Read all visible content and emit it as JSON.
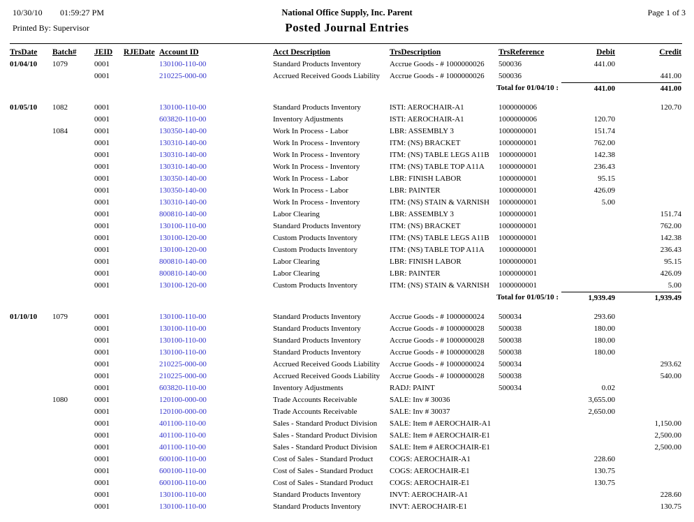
{
  "report": {
    "print_date": "10/30/10",
    "print_time": "01:59:27 PM",
    "printed_by": "Printed By: Supervisor",
    "company": "National Office Supply, Inc. Parent",
    "title": "Posted Journal Entries",
    "page_label": "Page 1 of  3"
  },
  "colors": {
    "account_link_blue": "#3333CC",
    "text": "#000000",
    "background": "#FFFFFF"
  },
  "table": {
    "columns": [
      "TrsDate",
      "Batch#",
      "JEID",
      "RJEDate",
      "Account ID",
      "Acct Description",
      "TrsDescription",
      "TrsReference",
      "Debit",
      "Credit"
    ],
    "rows": [
      {
        "type": "entry",
        "cells": [
          "01/04/10",
          "1079",
          "0001",
          "",
          "130100-110-00",
          "Standard Products Inventory",
          "Accrue Goods - # 1000000026",
          "500036",
          "441.00",
          ""
        ]
      },
      {
        "type": "entry",
        "cells": [
          "",
          "",
          "0001",
          "",
          "210225-000-00",
          "Accrued Received Goods Liability",
          "Accrue Goods - # 1000000026",
          "500036",
          "",
          "441.00"
        ]
      },
      {
        "type": "total",
        "label": "Total for 01/04/10 :",
        "debit": "441.00",
        "credit": "441.00"
      },
      {
        "type": "spacer"
      },
      {
        "type": "entry",
        "cells": [
          "01/05/10",
          "1082",
          "0001",
          "",
          "130100-110-00",
          "Standard Products Inventory",
          "ISTI: AEROCHAIR-A1",
          "1000000006",
          "",
          "120.70"
        ]
      },
      {
        "type": "entry",
        "cells": [
          "",
          "",
          "0001",
          "",
          "603820-110-00",
          "Inventory Adjustments",
          "ISTI: AEROCHAIR-A1",
          "1000000006",
          "120.70",
          ""
        ]
      },
      {
        "type": "entry",
        "cells": [
          "",
          "1084",
          "0001",
          "",
          "130350-140-00",
          "Work In Process - Labor",
          "LBR: ASSEMBLY 3",
          "1000000001",
          "151.74",
          ""
        ]
      },
      {
        "type": "entry",
        "cells": [
          "",
          "",
          "0001",
          "",
          "130310-140-00",
          "Work In Process - Inventory",
          "ITM: (NS) BRACKET",
          "1000000001",
          "762.00",
          ""
        ]
      },
      {
        "type": "entry",
        "cells": [
          "",
          "",
          "0001",
          "",
          "130310-140-00",
          "Work In Process - Inventory",
          "ITM: (NS) TABLE LEGS A11B",
          "1000000001",
          "142.38",
          ""
        ]
      },
      {
        "type": "entry",
        "cells": [
          "",
          "",
          "0001",
          "",
          "130310-140-00",
          "Work In Process - Inventory",
          "ITM: (NS) TABLE TOP A11A",
          "1000000001",
          "236.43",
          ""
        ]
      },
      {
        "type": "entry",
        "cells": [
          "",
          "",
          "0001",
          "",
          "130350-140-00",
          "Work In Process - Labor",
          "LBR: FINISH LABOR",
          "1000000001",
          "95.15",
          ""
        ]
      },
      {
        "type": "entry",
        "cells": [
          "",
          "",
          "0001",
          "",
          "130350-140-00",
          "Work In Process - Labor",
          "LBR: PAINTER",
          "1000000001",
          "426.09",
          ""
        ]
      },
      {
        "type": "entry",
        "cells": [
          "",
          "",
          "0001",
          "",
          "130310-140-00",
          "Work In Process - Inventory",
          "ITM: (NS) STAIN & VARNISH",
          "1000000001",
          "5.00",
          ""
        ]
      },
      {
        "type": "entry",
        "cells": [
          "",
          "",
          "0001",
          "",
          "800810-140-00",
          "Labor Clearing",
          "LBR: ASSEMBLY 3",
          "1000000001",
          "",
          "151.74"
        ]
      },
      {
        "type": "entry",
        "cells": [
          "",
          "",
          "0001",
          "",
          "130100-110-00",
          "Standard Products Inventory",
          "ITM: (NS) BRACKET",
          "1000000001",
          "",
          "762.00"
        ]
      },
      {
        "type": "entry",
        "cells": [
          "",
          "",
          "0001",
          "",
          "130100-120-00",
          "Custom Products Inventory",
          "ITM: (NS) TABLE LEGS A11B",
          "1000000001",
          "",
          "142.38"
        ]
      },
      {
        "type": "entry",
        "cells": [
          "",
          "",
          "0001",
          "",
          "130100-120-00",
          "Custom Products Inventory",
          "ITM: (NS) TABLE TOP A11A",
          "1000000001",
          "",
          "236.43"
        ]
      },
      {
        "type": "entry",
        "cells": [
          "",
          "",
          "0001",
          "",
          "800810-140-00",
          "Labor Clearing",
          "LBR: FINISH LABOR",
          "1000000001",
          "",
          "95.15"
        ]
      },
      {
        "type": "entry",
        "cells": [
          "",
          "",
          "0001",
          "",
          "800810-140-00",
          "Labor Clearing",
          "LBR: PAINTER",
          "1000000001",
          "",
          "426.09"
        ]
      },
      {
        "type": "entry",
        "cells": [
          "",
          "",
          "0001",
          "",
          "130100-120-00",
          "Custom Products Inventory",
          "ITM: (NS) STAIN & VARNISH",
          "1000000001",
          "",
          "5.00"
        ]
      },
      {
        "type": "total",
        "label": "Total for 01/05/10 :",
        "debit": "1,939.49",
        "credit": "1,939.49"
      },
      {
        "type": "spacer"
      },
      {
        "type": "entry",
        "cells": [
          "01/10/10",
          "1079",
          "0001",
          "",
          "130100-110-00",
          "Standard Products Inventory",
          "Accrue Goods - # 1000000024",
          "500034",
          "293.60",
          ""
        ]
      },
      {
        "type": "entry",
        "cells": [
          "",
          "",
          "0001",
          "",
          "130100-110-00",
          "Standard Products Inventory",
          "Accrue Goods - # 1000000028",
          "500038",
          "180.00",
          ""
        ]
      },
      {
        "type": "entry",
        "cells": [
          "",
          "",
          "0001",
          "",
          "130100-110-00",
          "Standard Products Inventory",
          "Accrue Goods - # 1000000028",
          "500038",
          "180.00",
          ""
        ]
      },
      {
        "type": "entry",
        "cells": [
          "",
          "",
          "0001",
          "",
          "130100-110-00",
          "Standard Products Inventory",
          "Accrue Goods - # 1000000028",
          "500038",
          "180.00",
          ""
        ]
      },
      {
        "type": "entry",
        "cells": [
          "",
          "",
          "0001",
          "",
          "210225-000-00",
          "Accrued Received Goods Liability",
          "Accrue Goods - # 1000000024",
          "500034",
          "",
          "293.62"
        ]
      },
      {
        "type": "entry",
        "cells": [
          "",
          "",
          "0001",
          "",
          "210225-000-00",
          "Accrued Received Goods Liability",
          "Accrue Goods - # 1000000028",
          "500038",
          "",
          "540.00"
        ]
      },
      {
        "type": "entry",
        "cells": [
          "",
          "",
          "0001",
          "",
          "603820-110-00",
          "Inventory Adjustments",
          "RADJ: PAINT",
          "500034",
          "0.02",
          ""
        ]
      },
      {
        "type": "entry",
        "cells": [
          "",
          "1080",
          "0001",
          "",
          "120100-000-00",
          "Trade Accounts Receivable",
          "SALE: Inv #   30036",
          "",
          "3,655.00",
          ""
        ]
      },
      {
        "type": "entry",
        "cells": [
          "",
          "",
          "0001",
          "",
          "120100-000-00",
          "Trade Accounts Receivable",
          "SALE: Inv #   30037",
          "",
          "2,650.00",
          ""
        ]
      },
      {
        "type": "entry",
        "cells": [
          "",
          "",
          "0001",
          "",
          "401100-110-00",
          "Sales - Standard Product Division",
          "SALE: Item # AEROCHAIR-A1",
          "",
          "",
          "1,150.00"
        ]
      },
      {
        "type": "entry",
        "cells": [
          "",
          "",
          "0001",
          "",
          "401100-110-00",
          "Sales - Standard Product Division",
          "SALE: Item # AEROCHAIR-E1",
          "",
          "",
          "2,500.00"
        ]
      },
      {
        "type": "entry",
        "cells": [
          "",
          "",
          "0001",
          "",
          "401100-110-00",
          "Sales - Standard Product Division",
          "SALE: Item # AEROCHAIR-E1",
          "",
          "",
          "2,500.00"
        ]
      },
      {
        "type": "entry",
        "cells": [
          "",
          "",
          "0001",
          "",
          "600100-110-00",
          "Cost of Sales - Standard Product",
          "COGS: AEROCHAIR-A1",
          "",
          "228.60",
          ""
        ]
      },
      {
        "type": "entry",
        "cells": [
          "",
          "",
          "0001",
          "",
          "600100-110-00",
          "Cost of Sales - Standard Product",
          "COGS: AEROCHAIR-E1",
          "",
          "130.75",
          ""
        ]
      },
      {
        "type": "entry",
        "cells": [
          "",
          "",
          "0001",
          "",
          "600100-110-00",
          "Cost of Sales - Standard Product",
          "COGS: AEROCHAIR-E1",
          "",
          "130.75",
          ""
        ]
      },
      {
        "type": "entry",
        "cells": [
          "",
          "",
          "0001",
          "",
          "130100-110-00",
          "Standard Products Inventory",
          "INVT: AEROCHAIR-A1",
          "",
          "",
          "228.60"
        ]
      },
      {
        "type": "entry",
        "cells": [
          "",
          "",
          "0001",
          "",
          "130100-110-00",
          "Standard Products Inventory",
          "INVT: AEROCHAIR-E1",
          "",
          "",
          "130.75"
        ]
      }
    ]
  }
}
